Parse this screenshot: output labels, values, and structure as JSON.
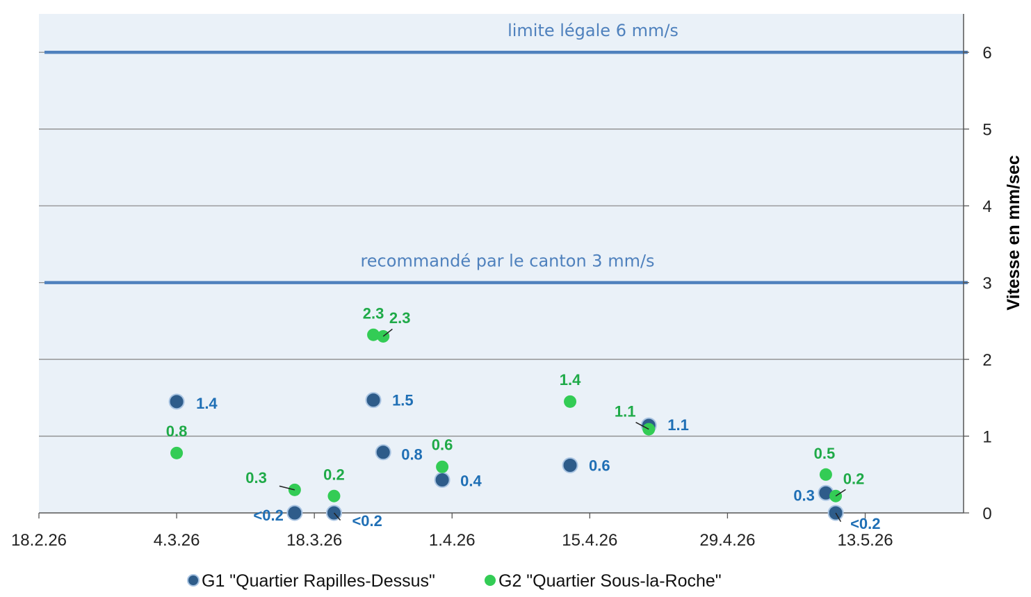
{
  "chart_data": {
    "type": "scatter",
    "ylabel": "Vitesse en mm/sec",
    "xlim": [
      "18.2.26",
      "23.5.26"
    ],
    "ylim": [
      0,
      6.5
    ],
    "x_ticks": [
      "18.2.26",
      "4.3.26",
      "18.3.26",
      "1.4.26",
      "15.4.26",
      "29.4.26",
      "13.5.26"
    ],
    "y_ticks": [
      "0",
      "1",
      "2",
      "3",
      "4",
      "5",
      "6"
    ],
    "y_axis_side": "right",
    "grid": true,
    "legend_position": "bottom",
    "reference_lines": [
      {
        "label": "limite légale 6 mm/s",
        "y": 6,
        "color": "#4f81bd"
      },
      {
        "label": "recommandé par le canton 3 mm/s",
        "y": 3,
        "color": "#4f81bd"
      }
    ],
    "series": [
      {
        "name": "G1 \"Quartier Rapilles-Dessus\"",
        "color": "#2e5c8a",
        "label_color": "#1f6fb5",
        "points": [
          {
            "x": "4.3.26",
            "y": 1.45,
            "label": "1.4"
          },
          {
            "x": "16.3.26",
            "y": 0.0,
            "label": "<0.2"
          },
          {
            "x": "20.3.26",
            "y": 0.0,
            "label": "<0.2"
          },
          {
            "x": "24.3.26",
            "y": 1.47,
            "label": "1.5"
          },
          {
            "x": "25.3.26",
            "y": 0.79,
            "label": "0.8"
          },
          {
            "x": "31.3.26",
            "y": 0.43,
            "label": "0.4"
          },
          {
            "x": "13.4.26",
            "y": 0.62,
            "label": "0.6"
          },
          {
            "x": "21.4.26",
            "y": 1.14,
            "label": "1.1"
          },
          {
            "x": "9.5.26",
            "y": 0.26,
            "label": "0.3"
          },
          {
            "x": "10.5.26",
            "y": 0.0,
            "label": "<0.2"
          }
        ]
      },
      {
        "name": "G2 \"Quartier Sous-la-Roche\"",
        "color": "#33cc55",
        "label_color": "#1faa48",
        "points": [
          {
            "x": "4.3.26",
            "y": 0.78,
            "label": "0.8"
          },
          {
            "x": "16.3.26",
            "y": 0.3,
            "label": "0.3"
          },
          {
            "x": "20.3.26",
            "y": 0.22,
            "label": "0.2"
          },
          {
            "x": "24.3.26",
            "y": 2.32,
            "label": "2.3"
          },
          {
            "x": "25.3.26",
            "y": 2.3,
            "label": "2.3"
          },
          {
            "x": "31.3.26",
            "y": 0.6,
            "label": "0.6"
          },
          {
            "x": "13.4.26",
            "y": 1.45,
            "label": "1.4"
          },
          {
            "x": "21.4.26",
            "y": 1.09,
            "label": "1.1"
          },
          {
            "x": "9.5.26",
            "y": 0.5,
            "label": "0.5"
          },
          {
            "x": "10.5.26",
            "y": 0.22,
            "label": "0.2"
          }
        ]
      }
    ]
  }
}
